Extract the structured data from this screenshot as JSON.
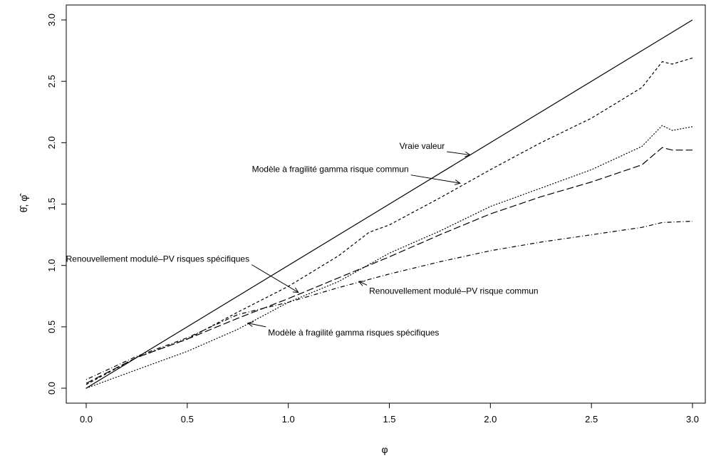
{
  "chart_data": {
    "type": "line",
    "title": "",
    "xlabel": "φ",
    "ylabel": "θ̂, φ̂",
    "xlim": [
      0,
      3
    ],
    "ylim": [
      0,
      3
    ],
    "x_ticks": [
      "0.0",
      "0.5",
      "1.0",
      "1.5",
      "2.0",
      "2.5",
      "3.0"
    ],
    "y_ticks": [
      "0.0",
      "0.5",
      "1.0",
      "1.5",
      "2.0",
      "2.5",
      "3.0"
    ],
    "grid": false,
    "legend": "none (inline annotations with arrows)",
    "series": [
      {
        "name": "Vraie valeur",
        "style": "solid",
        "points": [
          [
            0,
            0
          ],
          [
            3,
            3
          ]
        ]
      },
      {
        "name": "Modèle à fragilité gamma risque commun",
        "style": "dashed",
        "points": [
          [
            0,
            0.03
          ],
          [
            0.25,
            0.25
          ],
          [
            0.5,
            0.4
          ],
          [
            0.75,
            0.62
          ],
          [
            1.0,
            0.83
          ],
          [
            1.25,
            1.08
          ],
          [
            1.4,
            1.27
          ],
          [
            1.5,
            1.33
          ],
          [
            1.75,
            1.55
          ],
          [
            2.0,
            1.78
          ],
          [
            2.25,
            2.0
          ],
          [
            2.5,
            2.2
          ],
          [
            2.75,
            2.45
          ],
          [
            2.85,
            2.66
          ],
          [
            2.9,
            2.64
          ],
          [
            3.0,
            2.69
          ]
        ]
      },
      {
        "name": "Modèle à fragilité gamma risques spécifiques",
        "style": "dotted",
        "points": [
          [
            0,
            0.0
          ],
          [
            0.25,
            0.15
          ],
          [
            0.5,
            0.3
          ],
          [
            0.75,
            0.48
          ],
          [
            1.0,
            0.7
          ],
          [
            1.25,
            0.87
          ],
          [
            1.5,
            1.1
          ],
          [
            1.75,
            1.28
          ],
          [
            2.0,
            1.48
          ],
          [
            2.25,
            1.63
          ],
          [
            2.5,
            1.78
          ],
          [
            2.75,
            1.97
          ],
          [
            2.85,
            2.14
          ],
          [
            2.9,
            2.1
          ],
          [
            3.0,
            2.13
          ]
        ]
      },
      {
        "name": "Renouvellement modulé–PV risques spécifiques",
        "style": "longdash",
        "points": [
          [
            0,
            0.04
          ],
          [
            0.25,
            0.25
          ],
          [
            0.5,
            0.4
          ],
          [
            0.75,
            0.57
          ],
          [
            1.0,
            0.73
          ],
          [
            1.25,
            0.9
          ],
          [
            1.5,
            1.07
          ],
          [
            1.75,
            1.25
          ],
          [
            2.0,
            1.42
          ],
          [
            2.25,
            1.56
          ],
          [
            2.5,
            1.68
          ],
          [
            2.75,
            1.82
          ],
          [
            2.85,
            1.96
          ],
          [
            2.9,
            1.94
          ],
          [
            3.0,
            1.94
          ]
        ]
      },
      {
        "name": "Renouvellement modulé–PV risque commun",
        "style": "dotdash",
        "points": [
          [
            0,
            0.07
          ],
          [
            0.25,
            0.26
          ],
          [
            0.5,
            0.41
          ],
          [
            0.75,
            0.6
          ],
          [
            1.0,
            0.7
          ],
          [
            1.25,
            0.82
          ],
          [
            1.5,
            0.93
          ],
          [
            1.75,
            1.03
          ],
          [
            2.0,
            1.12
          ],
          [
            2.25,
            1.19
          ],
          [
            2.5,
            1.25
          ],
          [
            2.75,
            1.31
          ],
          [
            2.85,
            1.35
          ],
          [
            3.0,
            1.36
          ]
        ]
      }
    ],
    "annotations": [
      {
        "text": "Vraie valeur",
        "tx": 1.55,
        "ty": 1.95,
        "ax": 1.9,
        "ay": 1.9,
        "anchor": "start"
      },
      {
        "text": "Modèle à fragilité gamma risque commun",
        "tx": 0.82,
        "ty": 1.76,
        "ax": 1.85,
        "ay": 1.67,
        "anchor": "start"
      },
      {
        "text": "Renouvellement modulé–PV risques spécifiques",
        "tx": -0.1,
        "ty": 1.03,
        "ax": 1.05,
        "ay": 0.78,
        "anchor": "start"
      },
      {
        "text": "Renouvellement modulé–PV risque commun",
        "tx": 1.4,
        "ty": 0.77,
        "ax": 1.35,
        "ay": 0.87,
        "anchor": "start"
      },
      {
        "text": "Modèle à fragilité gamma risques spécifiques",
        "tx": 0.9,
        "ty": 0.43,
        "ax": 0.8,
        "ay": 0.53,
        "anchor": "start"
      }
    ]
  }
}
